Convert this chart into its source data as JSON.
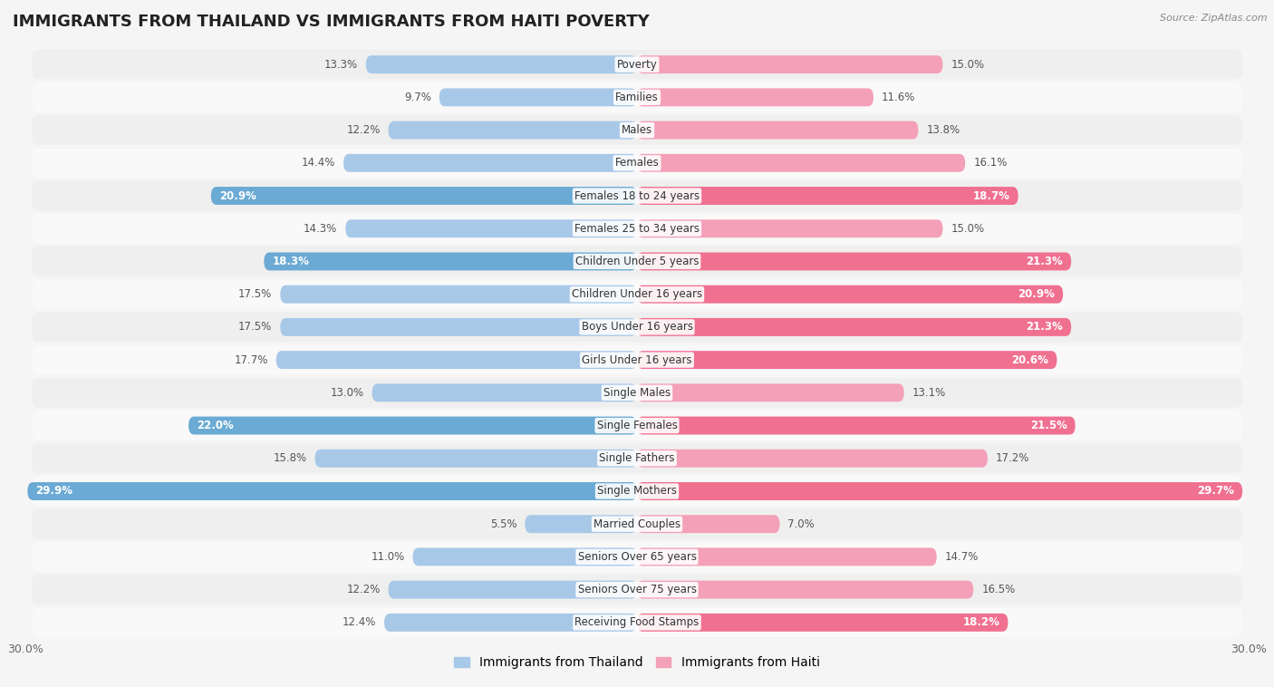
{
  "title": "IMMIGRANTS FROM THAILAND VS IMMIGRANTS FROM HAITI POVERTY",
  "source": "Source: ZipAtlas.com",
  "categories": [
    "Poverty",
    "Families",
    "Males",
    "Females",
    "Females 18 to 24 years",
    "Females 25 to 34 years",
    "Children Under 5 years",
    "Children Under 16 years",
    "Boys Under 16 years",
    "Girls Under 16 years",
    "Single Males",
    "Single Females",
    "Single Fathers",
    "Single Mothers",
    "Married Couples",
    "Seniors Over 65 years",
    "Seniors Over 75 years",
    "Receiving Food Stamps"
  ],
  "thailand_values": [
    13.3,
    9.7,
    12.2,
    14.4,
    20.9,
    14.3,
    18.3,
    17.5,
    17.5,
    17.7,
    13.0,
    22.0,
    15.8,
    29.9,
    5.5,
    11.0,
    12.2,
    12.4
  ],
  "haiti_values": [
    15.0,
    11.6,
    13.8,
    16.1,
    18.7,
    15.0,
    21.3,
    20.9,
    21.3,
    20.6,
    13.1,
    21.5,
    17.2,
    29.7,
    7.0,
    14.7,
    16.5,
    18.2
  ],
  "thailand_color_normal": "#a8c8e8",
  "thailand_color_highlight": "#6aaad4",
  "haiti_color_normal": "#f4a0b8",
  "haiti_color_highlight": "#f07090",
  "row_color_odd": "#efefef",
  "row_color_even": "#f9f9f9",
  "background_color": "#f5f5f5",
  "xlim": 30,
  "legend_thailand": "Immigrants from Thailand",
  "legend_haiti": "Immigrants from Haiti",
  "title_fontsize": 13,
  "label_fontsize": 8.5,
  "highlight_threshold": 17.8
}
